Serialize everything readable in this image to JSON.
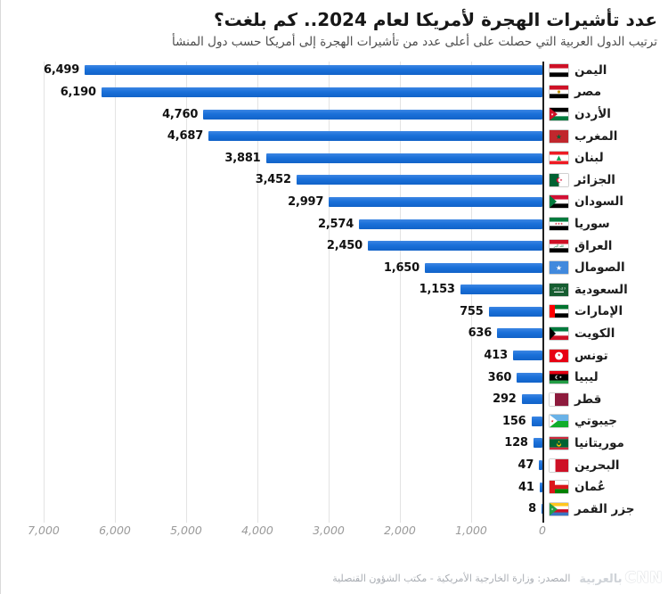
{
  "header": {
    "title": "عدد تأشيرات الهجرة لأمريكا لعام 2024.. كم بلغت؟",
    "subtitle": "ترتيب الدول العربية التي حصلت على أعلى عدد من تأشيرات الهجرة إلى أمريكا حسب دول المنشأ"
  },
  "chart_data": {
    "type": "bar",
    "orientation": "horizontal",
    "direction": "rtl",
    "title": "عدد تأشيرات الهجرة لأمريكا لعام 2024.. كم بلغت؟",
    "categories": [
      "اليمن",
      "مصر",
      "الأردن",
      "المغرب",
      "لبنان",
      "الجزائر",
      "السودان",
      "سوريا",
      "العراق",
      "الصومال",
      "السعودية",
      "الإمارات",
      "الكويت",
      "تونس",
      "ليبيا",
      "قطر",
      "جيبوتي",
      "موريتانيا",
      "البحرين",
      "عُمان",
      "جزر القمر"
    ],
    "values": [
      6499,
      6190,
      4760,
      4687,
      3881,
      3452,
      2997,
      2574,
      2450,
      1650,
      1153,
      755,
      636,
      413,
      360,
      292,
      156,
      128,
      47,
      41,
      8
    ],
    "xlim": [
      0,
      7000
    ],
    "x_ticks": [
      "7,000",
      "6,000",
      "5,000",
      "4,000",
      "3,000",
      "2,000",
      "1,000",
      "0"
    ],
    "grid": true,
    "bar_color": "#1a70d9",
    "flags": [
      {
        "name": "yemen-flag",
        "stripes": [
          {
            "c": "#ce1126"
          },
          {
            "c": "#ffffff"
          },
          {
            "c": "#000000"
          }
        ]
      },
      {
        "name": "egypt-flag",
        "stripes": [
          {
            "c": "#ce1126"
          },
          {
            "c": "#ffffff"
          },
          {
            "c": "#000000"
          }
        ],
        "emblems": [
          {
            "t": "circle",
            "x": 10.5,
            "y": 7,
            "r": 1.6,
            "c": "#c09300"
          }
        ]
      },
      {
        "name": "jordan-flag",
        "stripes": [
          {
            "c": "#000000"
          },
          {
            "c": "#ffffff"
          },
          {
            "c": "#007a3d"
          }
        ],
        "hoist": {
          "shape": "triangle",
          "c": "#ce1126",
          "w": 9
        },
        "emblems": [
          {
            "t": "star",
            "x": 3,
            "y": 7,
            "s": 4,
            "c": "#ffffff"
          }
        ]
      },
      {
        "name": "morocco-flag",
        "stripes": [
          {
            "c": "#c1272d"
          }
        ],
        "emblems": [
          {
            "t": "star",
            "x": 10.5,
            "y": 7.4,
            "s": 8,
            "c": "#006233"
          }
        ]
      },
      {
        "name": "lebanon-flag",
        "stripes": [
          {
            "c": "#ed1c24",
            "w": 1
          },
          {
            "c": "#ffffff",
            "w": 2
          },
          {
            "c": "#ed1c24",
            "w": 1
          }
        ],
        "emblems": [
          {
            "t": "text",
            "v": "▲",
            "x": 10.5,
            "y": 7,
            "s": 7,
            "c": "#00a651"
          }
        ]
      },
      {
        "name": "algeria-flag",
        "orient": "v",
        "stripes": [
          {
            "c": "#006233"
          },
          {
            "c": "#ffffff"
          }
        ],
        "emblems": [
          {
            "t": "circle",
            "x": 10.5,
            "y": 7,
            "r": 2.8,
            "c": "#d21034"
          },
          {
            "t": "circle",
            "x": 11.8,
            "y": 7,
            "r": 2.3,
            "c": "#ffffff"
          },
          {
            "t": "star",
            "x": 13,
            "y": 7,
            "s": 3.6,
            "c": "#d21034"
          }
        ]
      },
      {
        "name": "sudan-flag",
        "stripes": [
          {
            "c": "#d21034"
          },
          {
            "c": "#ffffff"
          },
          {
            "c": "#000000"
          }
        ],
        "hoist": {
          "shape": "triangle",
          "c": "#007a3d",
          "w": 8
        }
      },
      {
        "name": "syria-flag",
        "stripes": [
          {
            "c": "#007a3d"
          },
          {
            "c": "#ffffff"
          },
          {
            "c": "#000000"
          }
        ],
        "emblems": [
          {
            "t": "text",
            "v": "★★★",
            "x": 10.5,
            "y": 7,
            "s": 3.5,
            "c": "#ce1126"
          }
        ]
      },
      {
        "name": "iraq-flag",
        "stripes": [
          {
            "c": "#ce1126"
          },
          {
            "c": "#ffffff"
          },
          {
            "c": "#000000"
          }
        ],
        "emblems": [
          {
            "t": "text",
            "v": "الله أكبر",
            "x": 10.5,
            "y": 7,
            "s": 3.4,
            "c": "#007a3d"
          }
        ]
      },
      {
        "name": "somalia-flag",
        "stripes": [
          {
            "c": "#4189dd"
          }
        ],
        "emblems": [
          {
            "t": "star",
            "x": 10.5,
            "y": 7.3,
            "s": 8,
            "c": "#ffffff"
          }
        ]
      },
      {
        "name": "saudi-arabia-flag",
        "stripes": [
          {
            "c": "#165d31"
          }
        ],
        "emblems": [
          {
            "t": "text",
            "v": "لا إله إلا الله",
            "x": 10.5,
            "y": 5.4,
            "s": 3,
            "c": "#ffffff"
          },
          {
            "t": "rect",
            "x": 5,
            "y": 8.8,
            "w": 11,
            "h": 1.1,
            "c": "#ffffff"
          }
        ]
      },
      {
        "name": "uae-flag",
        "stripes": [
          {
            "c": "#00732f"
          },
          {
            "c": "#ffffff"
          },
          {
            "c": "#000000"
          }
        ],
        "hoist": {
          "shape": "band",
          "c": "#ff0000",
          "w": 6
        }
      },
      {
        "name": "kuwait-flag",
        "stripes": [
          {
            "c": "#007a3d"
          },
          {
            "c": "#ffffff"
          },
          {
            "c": "#ce1126"
          }
        ],
        "hoist": {
          "shape": "triangle",
          "c": "#000000",
          "w": 7
        }
      },
      {
        "name": "tunisia-flag",
        "stripes": [
          {
            "c": "#e70013"
          }
        ],
        "emblems": [
          {
            "t": "circle",
            "x": 10.5,
            "y": 7,
            "r": 4.4,
            "c": "#ffffff"
          },
          {
            "t": "star",
            "x": 10.7,
            "y": 7,
            "s": 4.6,
            "c": "#e70013"
          }
        ]
      },
      {
        "name": "libya-flag",
        "stripes": [
          {
            "c": "#e70013",
            "w": 1
          },
          {
            "c": "#000000",
            "w": 2
          },
          {
            "c": "#239e46",
            "w": 1
          }
        ],
        "emblems": [
          {
            "t": "circle",
            "x": 8.6,
            "y": 7,
            "r": 2.2,
            "c": "#ffffff"
          },
          {
            "t": "circle",
            "x": 9.5,
            "y": 7,
            "r": 1.9,
            "c": "#000000"
          },
          {
            "t": "star",
            "x": 12.4,
            "y": 7,
            "s": 3.6,
            "c": "#ffffff"
          }
        ]
      },
      {
        "name": "qatar-flag",
        "orient": "v",
        "stripes": [
          {
            "c": "#ffffff",
            "w": 1
          },
          {
            "c": "#8d1b3d",
            "w": 2.5
          }
        ]
      },
      {
        "name": "djibouti-flag",
        "stripes": [
          {
            "c": "#6ab2e7"
          },
          {
            "c": "#12ad2b"
          }
        ],
        "hoist": {
          "shape": "triangle",
          "c": "#ffffff",
          "w": 9
        },
        "emblems": [
          {
            "t": "star",
            "x": 3.2,
            "y": 7,
            "s": 4,
            "c": "#d7141a"
          }
        ]
      },
      {
        "name": "mauritania-flag",
        "stripes": [
          {
            "c": "#cd2a3e",
            "w": 1
          },
          {
            "c": "#006233",
            "w": 4
          },
          {
            "c": "#cd2a3e",
            "w": 1
          }
        ],
        "emblems": [
          {
            "t": "circle",
            "x": 10.5,
            "y": 8,
            "r": 2.6,
            "c": "#ffc400"
          },
          {
            "t": "circle",
            "x": 10.5,
            "y": 6.8,
            "r": 2.2,
            "c": "#006233"
          },
          {
            "t": "star",
            "x": 10.5,
            "y": 5.6,
            "s": 3.4,
            "c": "#ffc400"
          }
        ]
      },
      {
        "name": "bahrain-flag",
        "orient": "v",
        "stripes": [
          {
            "c": "#ffffff",
            "w": 1
          },
          {
            "c": "#ce1126",
            "w": 2.2
          }
        ]
      },
      {
        "name": "oman-flag",
        "stripes": [
          {
            "c": "#ffffff"
          },
          {
            "c": "#db161b"
          },
          {
            "c": "#008000"
          }
        ],
        "hoist": {
          "shape": "band",
          "c": "#db161b",
          "w": 6
        }
      },
      {
        "name": "comoros-flag",
        "stripes": [
          {
            "c": "#ffc61e"
          },
          {
            "c": "#ffffff"
          },
          {
            "c": "#ce1126"
          },
          {
            "c": "#3a75c4"
          }
        ],
        "hoist": {
          "shape": "triangle",
          "c": "#239e46",
          "w": 9
        },
        "emblems": [
          {
            "t": "star",
            "x": 3,
            "y": 7,
            "s": 3.2,
            "c": "#ffffff"
          }
        ]
      }
    ]
  },
  "footer": {
    "source": "المصدر: وزارة الخارجية الأمريكية - مكتب الشؤون القنصلية",
    "logo_cnn": "CNN",
    "logo_arabic": "بالعربية"
  }
}
